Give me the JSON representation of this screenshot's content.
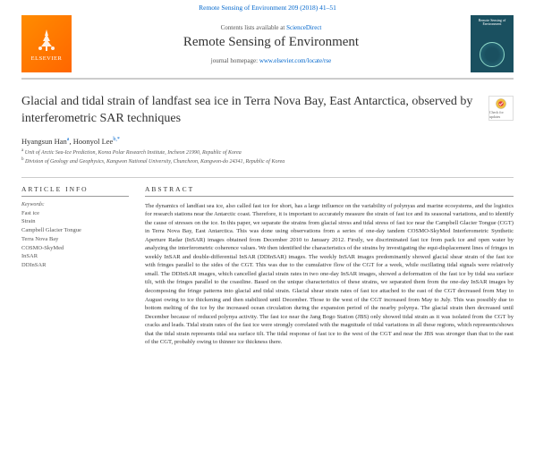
{
  "top_citation": "Remote Sensing of Environment 209 (2018) 41–51",
  "header": {
    "contents_prefix": "Contents lists available at ",
    "contents_link": "ScienceDirect",
    "journal_title": "Remote Sensing of Environment",
    "homepage_prefix": "journal homepage: ",
    "homepage_link": "www.elsevier.com/locate/rse",
    "publisher_label": "ELSEVIER",
    "cover_label": "Remote Sensing of Environment"
  },
  "paper": {
    "title": "Glacial and tidal strain of landfast sea ice in Terra Nova Bay, East Antarctica, observed by interferometric SAR techniques",
    "check_label": "Check for updates",
    "authors_html": "Hyangsun Han<sup>a</sup>, Hoonyol Lee<sup>b,*</sup>",
    "affiliations": [
      "a Unit of Arctic Sea-Ice Prediction, Korea Polar Research Institute, Incheon 21990, Republic of Korea",
      "b Division of Geology and Geophysics, Kangwon National University, Chuncheon, Kangwon-do 24341, Republic of Korea"
    ]
  },
  "article_info": {
    "heading": "ARTICLE INFO",
    "keywords_label": "Keywords:",
    "keywords": [
      "Fast ice",
      "Strain",
      "Campbell Glacier Tongue",
      "Terra Nova Bay",
      "COSMO-SkyMed",
      "InSAR",
      "DDInSAR"
    ]
  },
  "abstract": {
    "heading": "ABSTRACT",
    "text": "The dynamics of landfast sea ice, also called fast ice for short, has a large influence on the variability of polynyas and marine ecosystems, and the logistics for research stations near the Antarctic coast. Therefore, it is important to accurately measure the strain of fast ice and its seasonal variations, and to identify the cause of stresses on the ice. In this paper, we separate the strains from glacial stress and tidal stress of fast ice near the Campbell Glacier Tongue (CGT) in Terra Nova Bay, East Antarctica. This was done using observations from a series of one-day tandem COSMO-SkyMed Interferometric Synthetic Aperture Radar (InSAR) images obtained from December 2010 to January 2012. Firstly, we discriminated fast ice from pack ice and open water by analyzing the interferometric coherence values. We then identified the characteristics of the strains by investigating the equi-displacement lines of fringes in weekly InSAR and double-differential InSAR (DDInSAR) images. The weekly InSAR images predominantly showed glacial shear strain of the fast ice with fringes parallel to the sides of the CGT. This was due to the cumulative flow of the CGT for a week, while oscillating tidal signals were relatively small. The DDInSAR images, which cancelled glacial strain rates in two one-day InSAR images, showed a deformation of the fast ice by tidal sea surface tilt, with the fringes parallel to the coastline. Based on the unique characteristics of these strains, we separated them from the one-day InSAR images by decomposing the fringe patterns into glacial and tidal strain. Glacial shear strain rates of fast ice attached to the east of the CGT decreased from May to August owing to ice thickening and then stabilized until December. Those to the west of the CGT increased from May to July. This was possibly due to bottom melting of the ice by the increased ocean circulation during the expansion period of the nearby polynya. The glacial strain then decreased until December because of reduced polynya activity. The fast ice near the Jang Bogo Station (JBS) only showed tidal strain as it was isolated from the CGT by cracks and leads. Tidal strain rates of the fast ice were strongly correlated with the magnitude of tidal variations in all these regions, which represents/shows that the tidal strain represents tidal sea surface tilt. The tidal response of fast ice to the west of the CGT and near the JBS was stronger than that to the east of the CGT, probably owing to thinner ice thickness there."
  },
  "colors": {
    "link": "#0066cc",
    "elsevier_bg": "#ff7a00",
    "cover_bg": "#1a5060",
    "rule": "#cccccc"
  }
}
